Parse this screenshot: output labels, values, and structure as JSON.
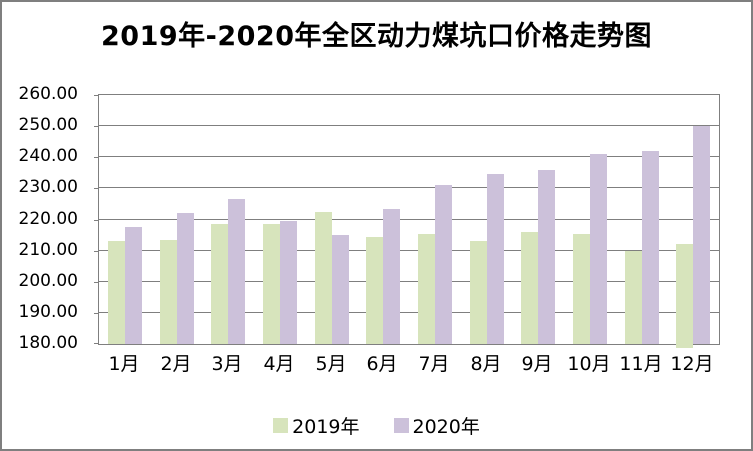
{
  "chart_data": {
    "type": "bar",
    "title": "2019年-2020年全区动力煤坑口价格走势图",
    "categories": [
      "1月",
      "2月",
      "3月",
      "4月",
      "5月",
      "6月",
      "7月",
      "8月",
      "9月",
      "10月",
      "11月",
      "12月"
    ],
    "series": [
      {
        "name": "2019年",
        "color": "#D7E4BC",
        "values": [
          213.0,
          213.5,
          218.5,
          218.5,
          222.5,
          214.5,
          215.5,
          213.0,
          216.0,
          215.5,
          210.0,
          212.0
        ]
      },
      {
        "name": "2020年",
        "color": "#CCC1DA",
        "values": [
          217.5,
          222.0,
          226.5,
          219.5,
          215.0,
          223.5,
          231.0,
          234.5,
          236.0,
          241.0,
          242.0,
          250.0
        ]
      }
    ],
    "xlabel": "",
    "ylabel": "",
    "ylim": [
      180,
      260
    ],
    "ytick_step": 10,
    "ytick_labels": [
      "260.00",
      "250.00",
      "240.00",
      "230.00",
      "220.00",
      "210.00",
      "200.00",
      "190.00",
      "180.00"
    ],
    "grid": true,
    "gridline_color": "#7f7f7f",
    "legend_position": "bottom",
    "background_color": "#ffffff",
    "border_color": "#7f7f7f",
    "text_color": "#000000"
  }
}
